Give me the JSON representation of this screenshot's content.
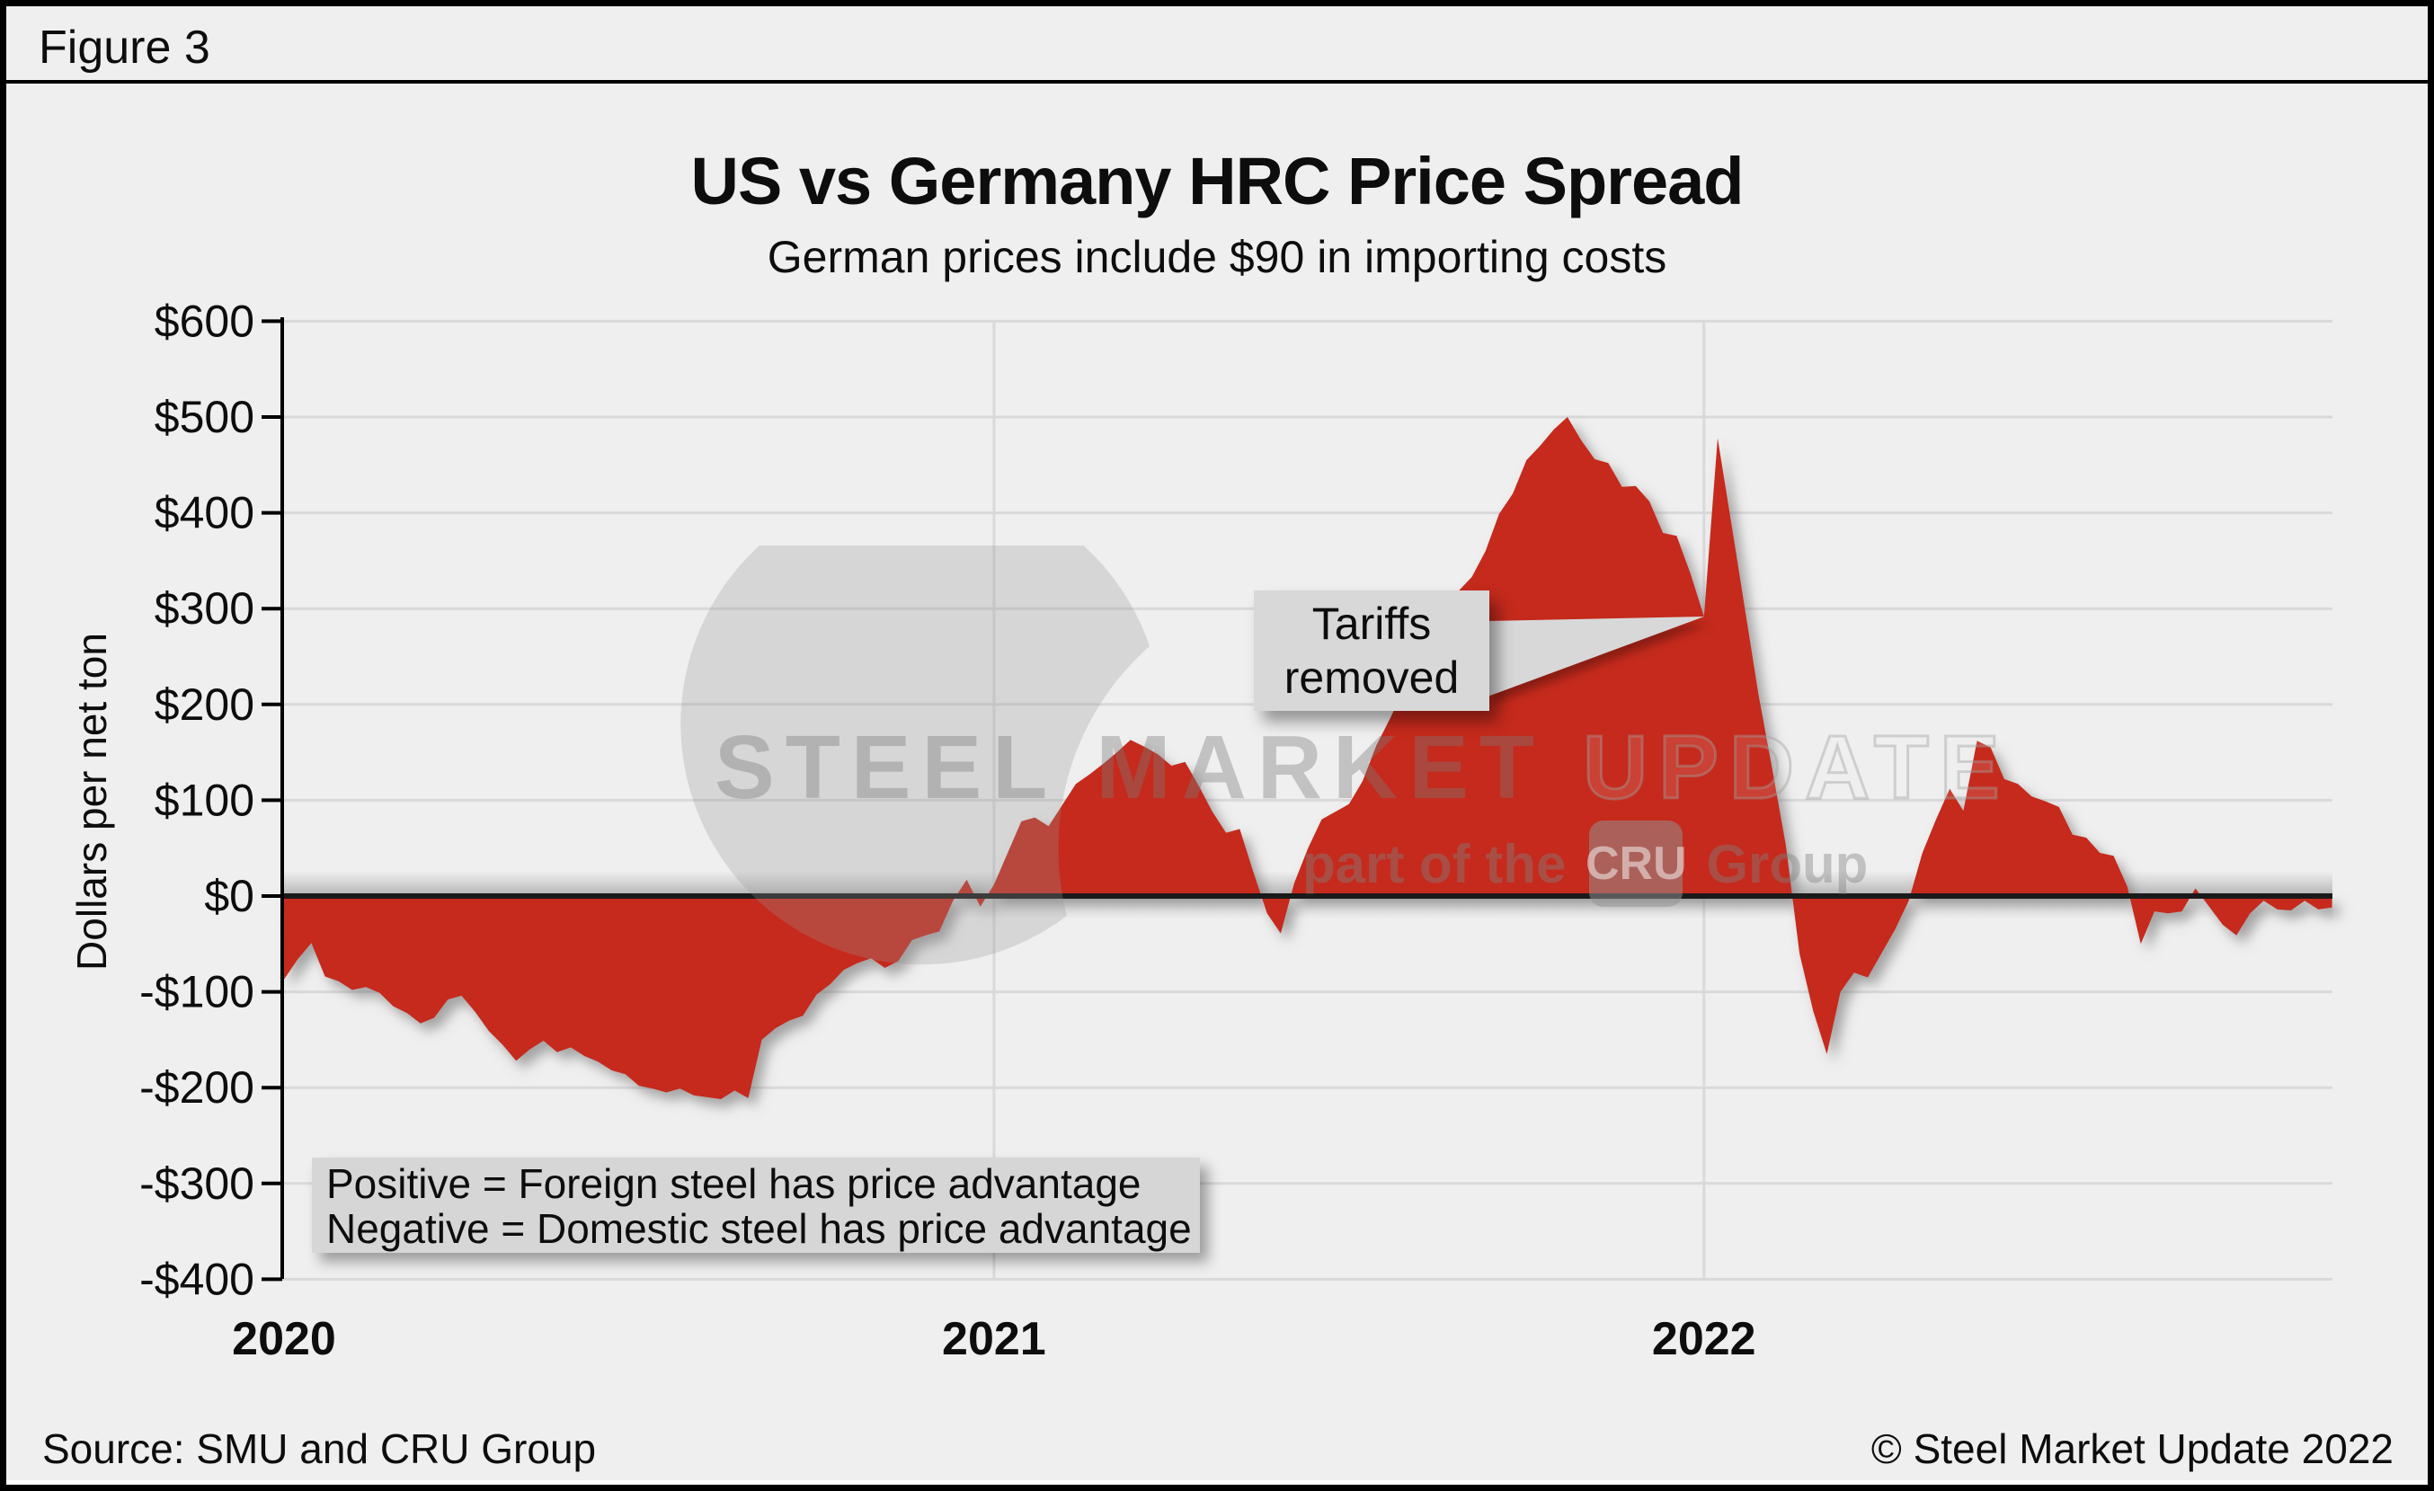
{
  "figure_label": "Figure 3",
  "title": "US vs Germany HRC Price Spread",
  "subtitle": "German prices include $90 in importing costs",
  "y_axis": {
    "label": "Dollars per net ton",
    "tick_labels": [
      "$600",
      "$500",
      "$400",
      "$300",
      "$200",
      "$100",
      "$0",
      "-$100",
      "-$200",
      "-$300",
      "-$400"
    ],
    "tick_values": [
      600,
      500,
      400,
      300,
      200,
      100,
      0,
      -100,
      -200,
      -300,
      -400
    ]
  },
  "x_axis": {
    "tick_labels": [
      "2020",
      "2021",
      "2022"
    ],
    "tick_years": [
      2020,
      2021,
      2022
    ]
  },
  "annotation": {
    "line1": "Tariffs",
    "line2": "removed",
    "target_week": 104,
    "target_value": 292
  },
  "info_box": {
    "line1": "Positive = Foreign steel has price advantage",
    "line2": "Negative = Domestic steel has price advantage"
  },
  "watermark": {
    "word1": "STEEL",
    "word2": "MARKET",
    "word3": "UPDATE",
    "tagline_pre": "part of the",
    "tagline_logo": "CRU",
    "tagline_post": "Group"
  },
  "footer": {
    "source": "Source: SMU and CRU Group",
    "copyright": "© Steel Market Update 2022"
  },
  "colors": {
    "area_red": "#c5291d",
    "background": "#efefef",
    "grid": "#d9d9d9",
    "zero_line": "#1a1a1a",
    "axis": "#000000",
    "box_gray": "#d8d8d8"
  },
  "chart_data": {
    "type": "area",
    "title": "US vs Germany HRC Price Spread",
    "subtitle": "German prices include $90 in importing costs",
    "ylabel": "Dollars per net ton",
    "xlabel": "",
    "ylim": [
      -400,
      600
    ],
    "ytick_step": 100,
    "baseline": 0,
    "x_start_year": 2020,
    "x_frequency": "weekly",
    "series_name": "US minus Germany HRC price spread, $/net ton (German price includes $90 importing cost)",
    "notes": "Positive = foreign steel price advantage; Negative = domestic steel price advantage; notch at start of 2022 marked 'Tariffs removed'",
    "values": [
      -87,
      -66,
      -49,
      -84,
      -89,
      -98,
      -95,
      -101,
      -115,
      -122,
      -133,
      -127,
      -108,
      -104,
      -121,
      -141,
      -155,
      -172,
      -160,
      -151,
      -163,
      -158,
      -167,
      -173,
      -182,
      -186,
      -198,
      -201,
      -205,
      -201,
      -208,
      -210,
      -212,
      -203,
      -211,
      -150,
      -138,
      -130,
      -125,
      -103,
      -92,
      -77,
      -70,
      -65,
      -75,
      -68,
      -46,
      -41,
      -37,
      -5,
      17,
      -11,
      12,
      45,
      78,
      82,
      73,
      95,
      117,
      127,
      138,
      150,
      163,
      156,
      148,
      136,
      140,
      115,
      88,
      66,
      70,
      25,
      -18,
      -39,
      14,
      50,
      80,
      88,
      96,
      120,
      157,
      185,
      215,
      250,
      280,
      305,
      318,
      333,
      360,
      399,
      420,
      455,
      470,
      487,
      500,
      476,
      456,
      452,
      427,
      428,
      412,
      379,
      376,
      337,
      292,
      478,
      390,
      300,
      210,
      133,
      53,
      -60,
      -120,
      -165,
      -100,
      -80,
      -85,
      -60,
      -35,
      -5,
      45,
      80,
      112,
      89,
      162,
      155,
      122,
      117,
      104,
      99,
      93,
      64,
      61,
      45,
      42,
      10,
      -50,
      -16,
      -18,
      -16,
      8,
      -11,
      -30,
      -41,
      -18,
      -5,
      -14,
      -15,
      -5,
      -14,
      -12
    ]
  }
}
